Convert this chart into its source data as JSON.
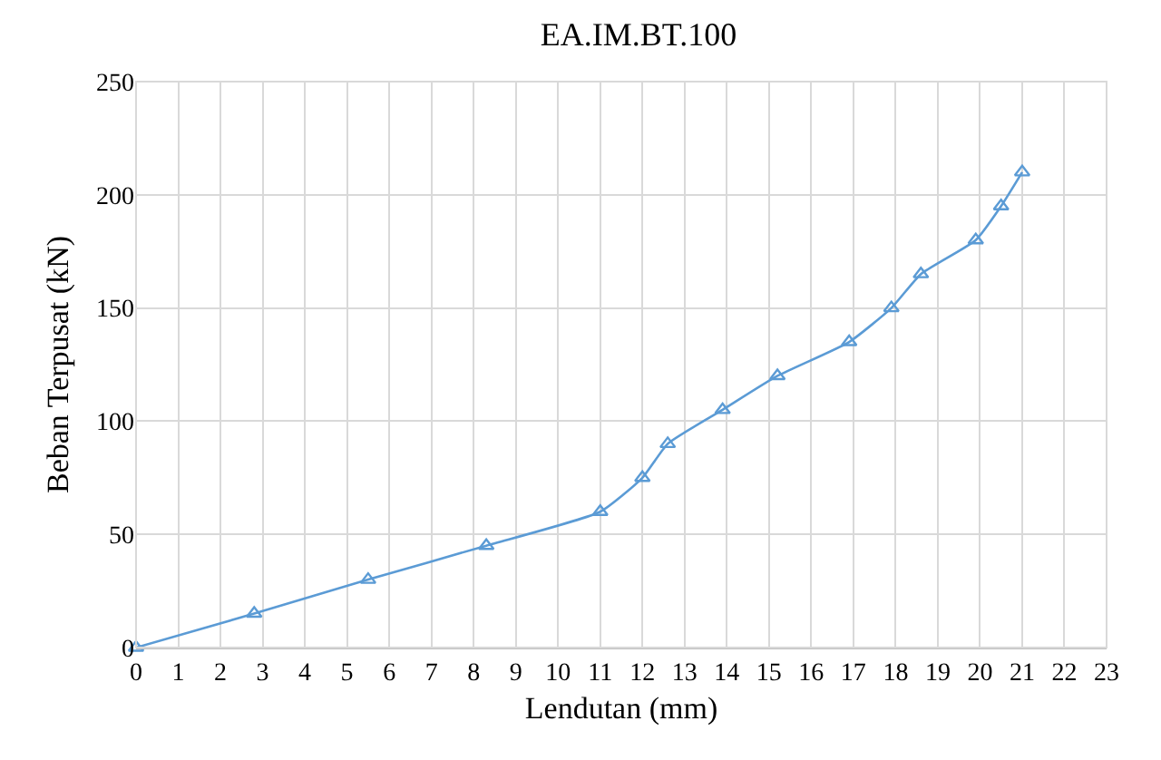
{
  "chart_data": {
    "type": "line",
    "title": "EA.IM.BT.100",
    "xlabel": "Lendutan (mm)",
    "ylabel": "Beban Terpusat (kN)",
    "x": [
      0,
      2.8,
      5.5,
      8.3,
      11,
      12,
      12.6,
      13.9,
      15.2,
      16.9,
      17.9,
      18.6,
      19.9,
      20.5,
      21
    ],
    "series": [
      {
        "color": "#5b9bd5",
        "values": [
          0,
          15,
          30,
          45,
          60,
          75,
          90,
          105,
          120,
          135,
          150,
          165,
          180,
          195,
          210
        ]
      }
    ],
    "xlim": [
      0,
      23
    ],
    "xticks": [
      0,
      1,
      2,
      3,
      4,
      5,
      6,
      7,
      8,
      9,
      10,
      11,
      12,
      13,
      14,
      15,
      16,
      17,
      18,
      19,
      20,
      21,
      22,
      23
    ],
    "ylim": [
      0,
      250
    ],
    "yticks": [
      0,
      50,
      100,
      150,
      200,
      250
    ],
    "grid": true,
    "marker": "triangle",
    "line_style": "solid"
  }
}
